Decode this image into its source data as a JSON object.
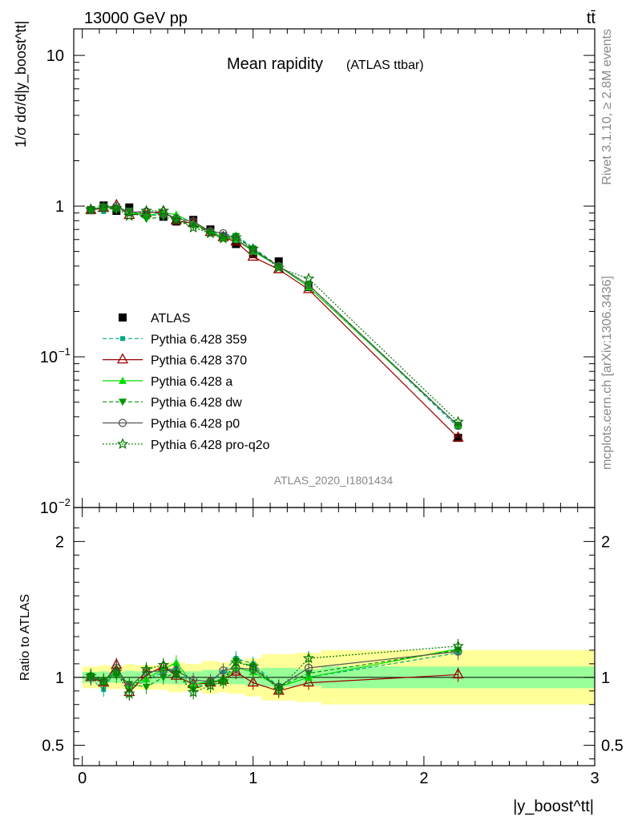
{
  "header": {
    "energy_label": "13000 GeV pp",
    "process_label": "tt̄"
  },
  "side_labels": {
    "rivet": "Rivet 3.1.10, ≥ 2.8M events",
    "mcplots": "mcplots.cern.ch [arXiv:1306.3436]"
  },
  "watermark": "ATLAS_2020_I1801434",
  "chart_data": [
    {
      "type": "line",
      "title": "Mean rapidity",
      "subtitle": "(ATLAS ttbar)",
      "ylabel": "1/σ dσ/d|y_boost^tt|",
      "xlabel": "|y_boost^tt|",
      "log_y": true,
      "xlim": [
        -0.05,
        3.0
      ],
      "ylim": [
        0.01,
        15
      ],
      "ytick_labels": [
        "10^-2",
        "10^-1",
        "1",
        "10"
      ],
      "legend_position": "middle-left",
      "x": [
        0.05,
        0.125,
        0.2,
        0.275,
        0.375,
        0.475,
        0.55,
        0.65,
        0.75,
        0.825,
        0.9,
        1.0,
        1.15,
        1.325,
        2.2
      ],
      "series": [
        {
          "name": "ATLAS",
          "color": "#000000",
          "marker": "square",
          "line": "none",
          "values": [
            0.94,
            1.01,
            0.93,
            0.98,
            0.88,
            0.85,
            0.79,
            0.81,
            0.7,
            0.63,
            0.56,
            0.48,
            0.43,
            0.29,
            0.029
          ]
        },
        {
          "name": "Pythia 6.428 359",
          "color": "#00aa88",
          "marker": "square-small",
          "line": "dashed",
          "values": [
            0.93,
            0.92,
            0.99,
            0.89,
            0.86,
            0.88,
            0.84,
            0.75,
            0.67,
            0.65,
            0.64,
            0.53,
            0.4,
            0.3,
            0.034
          ]
        },
        {
          "name": "Pythia 6.428 370",
          "color": "#990000",
          "marker": "triangle-open",
          "line": "solid",
          "values": [
            0.94,
            0.97,
            1.01,
            0.87,
            0.9,
            0.92,
            0.8,
            0.77,
            0.67,
            0.62,
            0.58,
            0.46,
            0.38,
            0.28,
            0.029
          ]
        },
        {
          "name": "Pythia 6.428 a",
          "color": "#00dd00",
          "marker": "triangle",
          "line": "solid",
          "values": [
            0.95,
            0.98,
            0.98,
            0.92,
            0.87,
            0.9,
            0.88,
            0.77,
            0.68,
            0.62,
            0.6,
            0.5,
            0.4,
            0.29,
            0.035
          ]
        },
        {
          "name": "Pythia 6.428 dw",
          "color": "#009900",
          "marker": "triangle-down",
          "line": "dashed",
          "values": [
            0.95,
            0.99,
            0.94,
            0.93,
            0.82,
            0.85,
            0.81,
            0.74,
            0.67,
            0.62,
            0.63,
            0.52,
            0.4,
            0.3,
            0.035
          ]
        },
        {
          "name": "Pythia 6.428 p0",
          "color": "#555555",
          "marker": "circle-open",
          "line": "solid",
          "values": [
            0.94,
            0.98,
            1.0,
            0.91,
            0.92,
            0.89,
            0.83,
            0.79,
            0.68,
            0.66,
            0.6,
            0.51,
            0.4,
            0.3,
            0.035
          ]
        },
        {
          "name": "Pythia 6.428 pro-q2o",
          "color": "#007700",
          "marker": "star-open",
          "line": "dotted",
          "values": [
            0.95,
            0.98,
            0.97,
            0.86,
            0.93,
            0.93,
            0.81,
            0.72,
            0.66,
            0.61,
            0.62,
            0.52,
            0.39,
            0.33,
            0.037
          ]
        }
      ]
    },
    {
      "type": "line",
      "title": "",
      "ylabel": "Ratio to ATLAS",
      "xlabel": "|y_boost^tt|",
      "xlim": [
        -0.05,
        3.0
      ],
      "ylim": [
        0.35,
        2.25
      ],
      "ytick_labels": [
        "0.5",
        "1",
        "2"
      ],
      "xtick_labels": [
        "0",
        "1",
        "2",
        "3"
      ],
      "bands": {
        "x_edges": [
          0.0,
          0.1,
          0.15,
          0.25,
          0.3,
          0.45,
          0.5,
          0.6,
          0.7,
          0.8,
          0.85,
          0.95,
          1.05,
          1.25,
          1.4,
          3.0
        ],
        "stat_half_width": [
          0.04,
          0.045,
          0.04,
          0.05,
          0.045,
          0.045,
          0.05,
          0.045,
          0.055,
          0.05,
          0.05,
          0.06,
          0.07,
          0.06,
          0.08
        ],
        "total_half_width": [
          0.08,
          0.09,
          0.085,
          0.1,
          0.09,
          0.09,
          0.11,
          0.1,
          0.12,
          0.11,
          0.12,
          0.14,
          0.17,
          0.18,
          0.2
        ],
        "stat_color": "#99ff99",
        "total_color": "#ffff99"
      },
      "x": [
        0.05,
        0.125,
        0.2,
        0.275,
        0.375,
        0.475,
        0.55,
        0.65,
        0.75,
        0.825,
        0.9,
        1.0,
        1.15,
        1.325,
        2.2
      ],
      "series": [
        {
          "name": "Pythia 6.428 359",
          "color": "#00aa88",
          "marker": "square-small",
          "line": "dashed",
          "values": [
            0.99,
            0.91,
            1.06,
            0.91,
            0.98,
            1.04,
            1.07,
            0.93,
            0.96,
            1.04,
            1.14,
            1.1,
            0.93,
            1.0,
            1.18
          ]
        },
        {
          "name": "Pythia 6.428 370",
          "color": "#990000",
          "marker": "triangle-open",
          "line": "solid",
          "values": [
            1.0,
            0.96,
            1.09,
            0.89,
            1.02,
            1.08,
            1.01,
            0.95,
            0.96,
            0.98,
            1.04,
            0.96,
            0.9,
            0.96,
            1.02
          ]
        },
        {
          "name": "Pythia 6.428 a",
          "color": "#00dd00",
          "marker": "triangle",
          "line": "solid",
          "values": [
            1.01,
            0.97,
            1.05,
            0.94,
            0.99,
            1.06,
            1.11,
            0.95,
            0.97,
            0.98,
            1.07,
            1.04,
            0.93,
            1.0,
            1.21
          ]
        },
        {
          "name": "Pythia 6.428 dw",
          "color": "#009900",
          "marker": "triangle-down",
          "line": "dashed",
          "values": [
            1.01,
            0.98,
            1.01,
            0.95,
            0.93,
            1.0,
            1.03,
            0.91,
            0.96,
            0.98,
            1.12,
            1.08,
            0.93,
            1.03,
            1.2
          ]
        },
        {
          "name": "Pythia 6.428 p0",
          "color": "#555555",
          "marker": "circle-open",
          "line": "solid",
          "values": [
            1.0,
            0.97,
            1.07,
            0.93,
            1.04,
            1.05,
            1.05,
            0.98,
            0.97,
            1.05,
            1.07,
            1.06,
            0.93,
            1.07,
            1.19
          ]
        },
        {
          "name": "Pythia 6.428 pro-q2o",
          "color": "#007700",
          "marker": "star-open",
          "line": "dotted",
          "values": [
            1.01,
            0.97,
            1.04,
            0.88,
            1.06,
            1.09,
            1.03,
            0.89,
            0.94,
            0.97,
            1.11,
            1.08,
            0.91,
            1.14,
            1.23
          ]
        }
      ]
    }
  ]
}
